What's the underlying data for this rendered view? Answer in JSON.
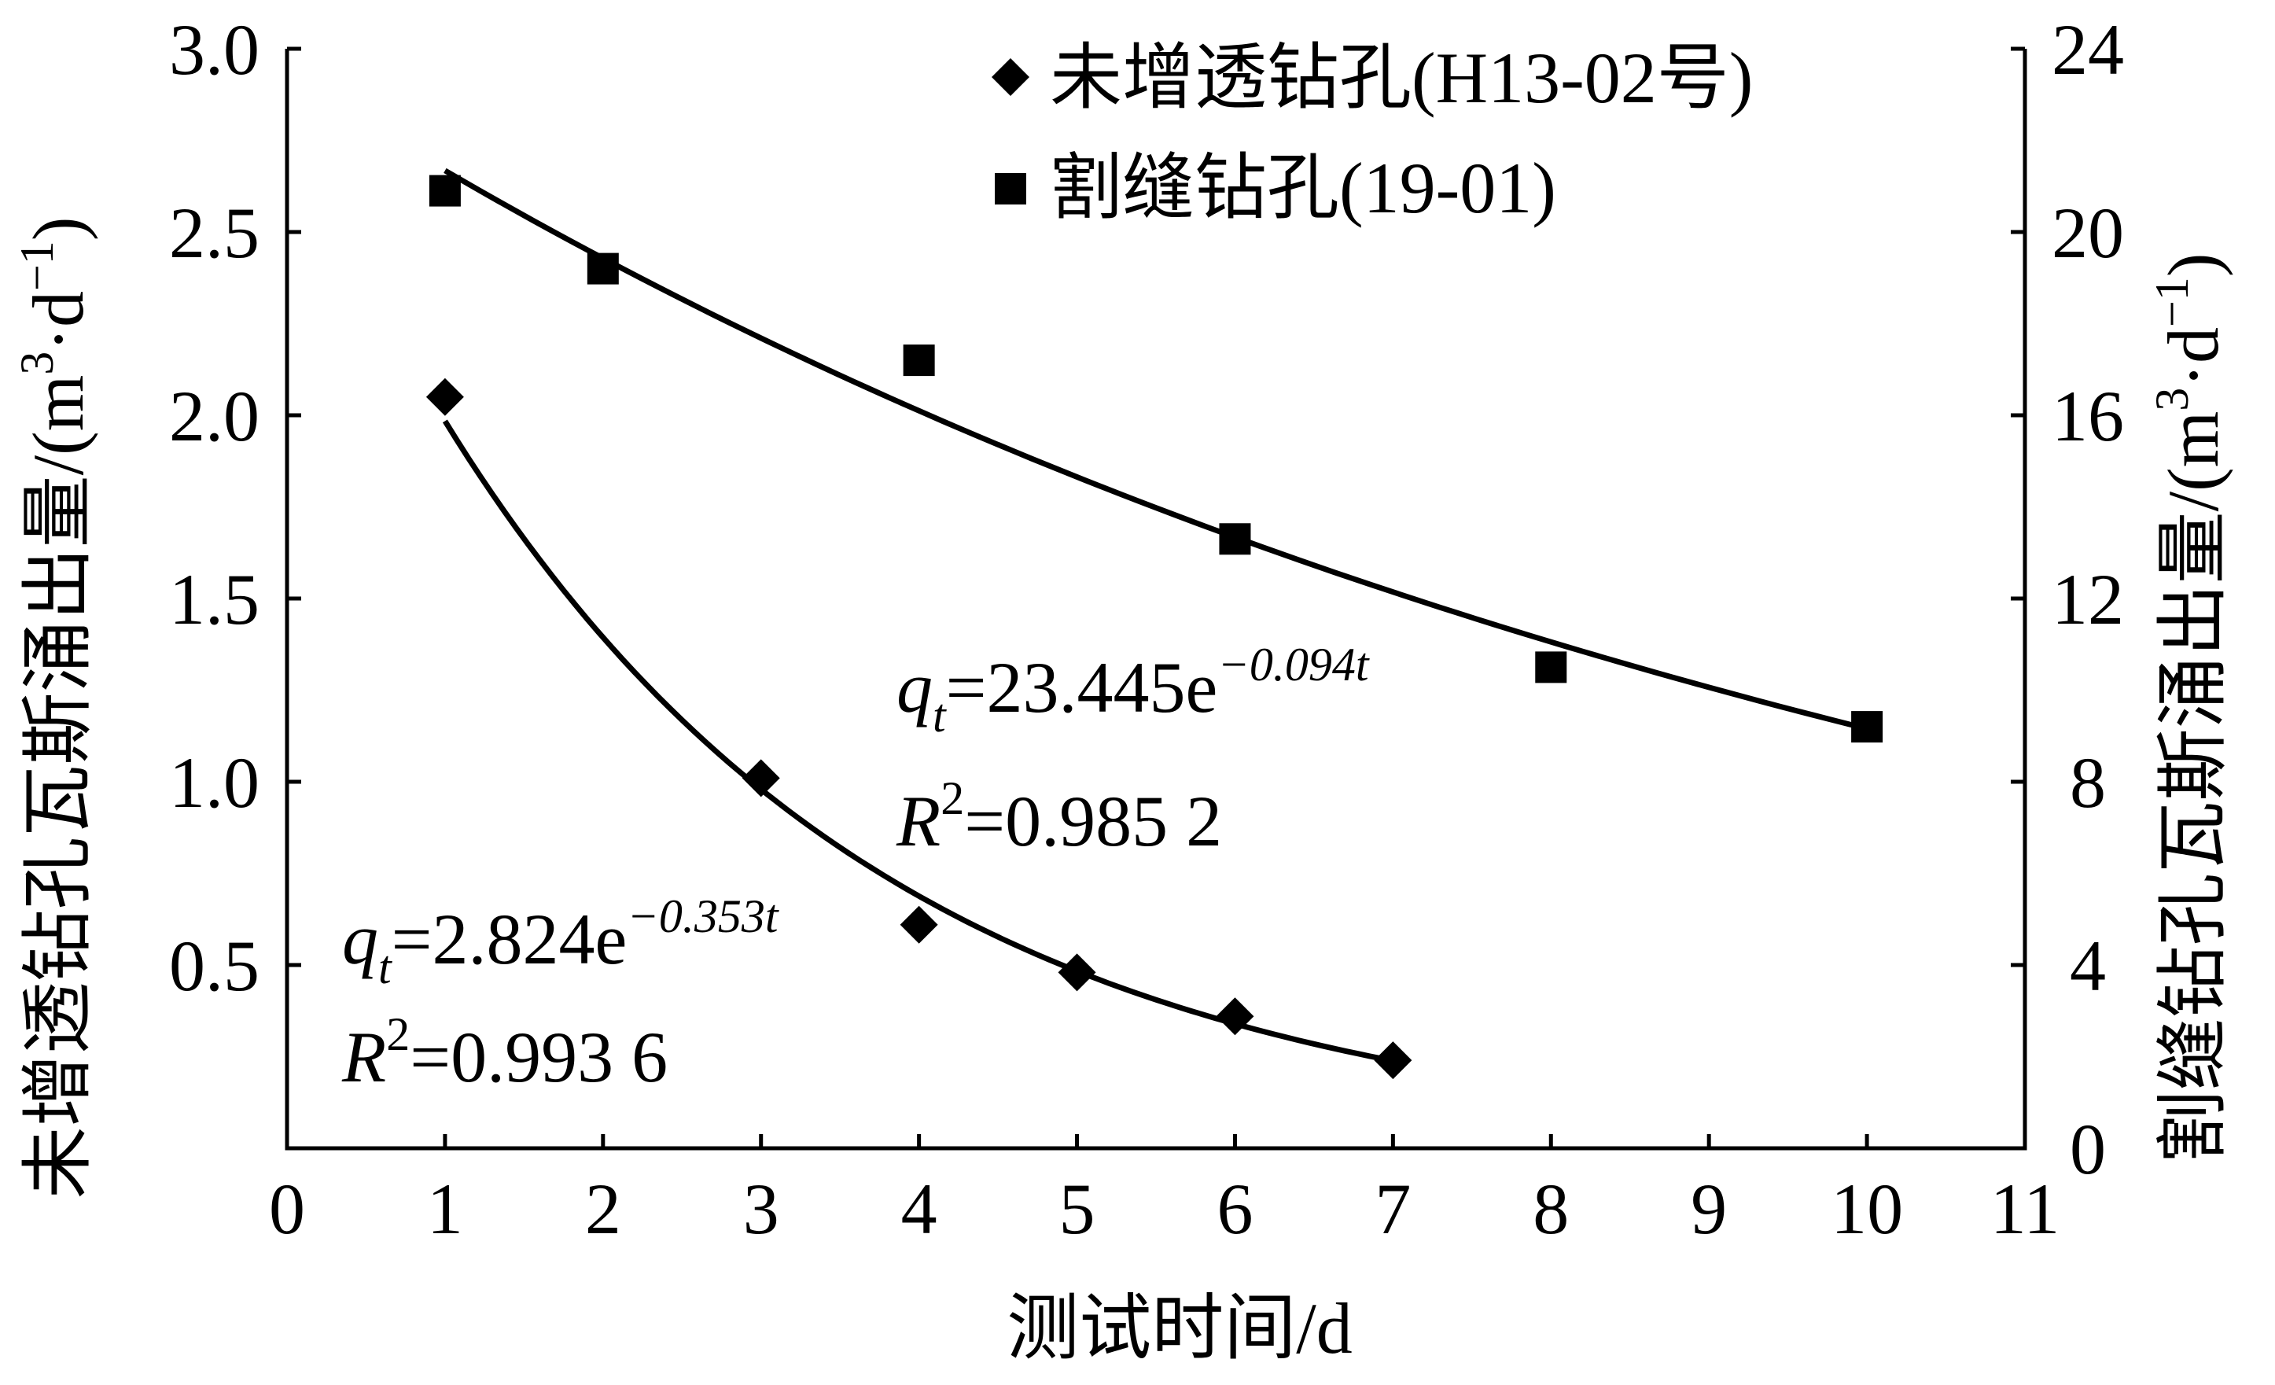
{
  "chart_data": {
    "type": "scatter",
    "xlabel": "测试时间/d",
    "ylabel_left": "未增透钻孔瓦斯涌出量/(m",
    "ylabel_left_unit_tail": "·d",
    "ylabel_right": "割缝钻孔瓦斯涌出量/(m",
    "ylabel_right_unit_tail": "·d",
    "ylabel_sup_3": "3",
    "ylabel_sup_minus1": "−1",
    "ylabel_close": ")",
    "xlim": [
      0,
      11
    ],
    "ylim_left": [
      0,
      3.0
    ],
    "ylim_right": [
      0,
      24
    ],
    "x_ticks": [
      "0",
      "1",
      "2",
      "3",
      "4",
      "5",
      "6",
      "7",
      "8",
      "9",
      "10",
      "11"
    ],
    "y_left_ticks": [
      "0.5",
      "1.0",
      "1.5",
      "2.0",
      "2.5",
      "3.0"
    ],
    "y_right_ticks": [
      "0",
      "4",
      "8",
      "12",
      "16",
      "20",
      "24"
    ],
    "legend_position": "top-right",
    "series": [
      {
        "name": "未增透钻孔(H13-02号)",
        "marker": "diamond",
        "axis": "left",
        "x": [
          1,
          3,
          4,
          5,
          6,
          7
        ],
        "y": [
          2.05,
          1.01,
          0.61,
          0.48,
          0.36,
          0.24
        ],
        "fit": {
          "a": 2.824,
          "b": -0.353,
          "x_range": [
            1,
            7
          ]
        },
        "equation": {
          "q": "q",
          "sub": "t",
          "rhs": "=2.824e",
          "exp": "−0.353t",
          "r": "R",
          "r_sup": "2",
          "r_val": "=0.993 6"
        }
      },
      {
        "name": "割缝钻孔(19-01)",
        "marker": "square",
        "axis": "right",
        "x": [
          1,
          2,
          4,
          6,
          8,
          10
        ],
        "y": [
          20.9,
          19.2,
          17.2,
          13.3,
          10.5,
          9.2
        ],
        "fit": {
          "a": 23.445,
          "b": -0.094,
          "x_range": [
            1,
            10
          ]
        },
        "equation": {
          "q": "q",
          "sub": "t",
          "rhs": "=23.445e",
          "exp": "−0.094t",
          "r": "R",
          "r_sup": "2",
          "r_val": "=0.985 2"
        }
      }
    ]
  }
}
